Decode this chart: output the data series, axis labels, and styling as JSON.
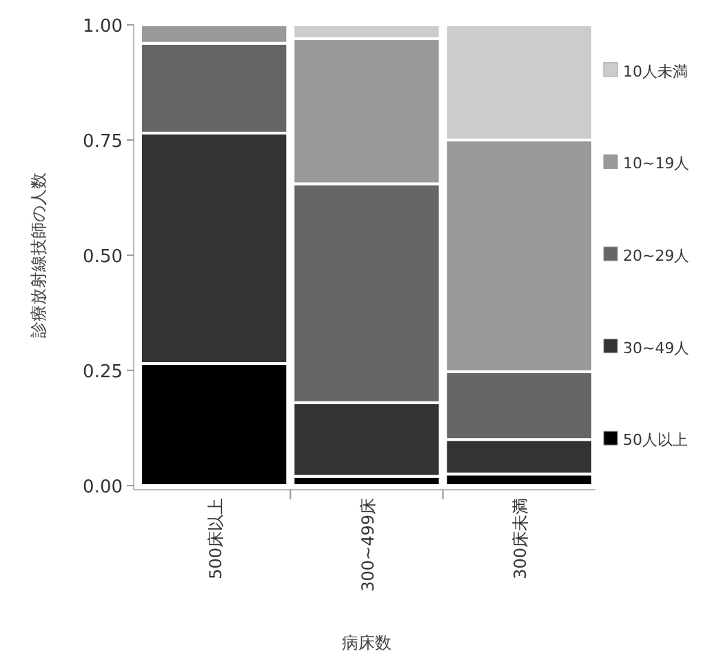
{
  "chart_data": {
    "type": "bar",
    "stacked": true,
    "ylabel": "診療放射線技師の人数",
    "xlabel": "病床数",
    "categories": [
      "500床以上",
      "300~499床",
      "300床未満"
    ],
    "series": [
      {
        "name": "50人以上",
        "color": "#000000",
        "values": [
          0.265,
          0.02,
          0.025
        ]
      },
      {
        "name": "30~49人",
        "color": "#333333",
        "values": [
          0.5,
          0.16,
          0.075
        ]
      },
      {
        "name": "20~29人",
        "color": "#666666",
        "values": [
          0.195,
          0.475,
          0.147
        ]
      },
      {
        "name": "10~19人",
        "color": "#999999",
        "values": [
          0.04,
          0.315,
          0.503
        ]
      },
      {
        "name": "10人未満",
        "color": "#cccccc",
        "values": [
          0,
          0.03,
          0.25
        ]
      }
    ],
    "ylim": [
      0,
      1
    ],
    "yticks": [
      {
        "value": 0,
        "label": "0.00"
      },
      {
        "value": 0.25,
        "label": "0.25"
      },
      {
        "value": 0.5,
        "label": "0.50"
      },
      {
        "value": 0.75,
        "label": "0.75"
      },
      {
        "value": 1,
        "label": "1.00"
      }
    ],
    "legend": "right"
  }
}
